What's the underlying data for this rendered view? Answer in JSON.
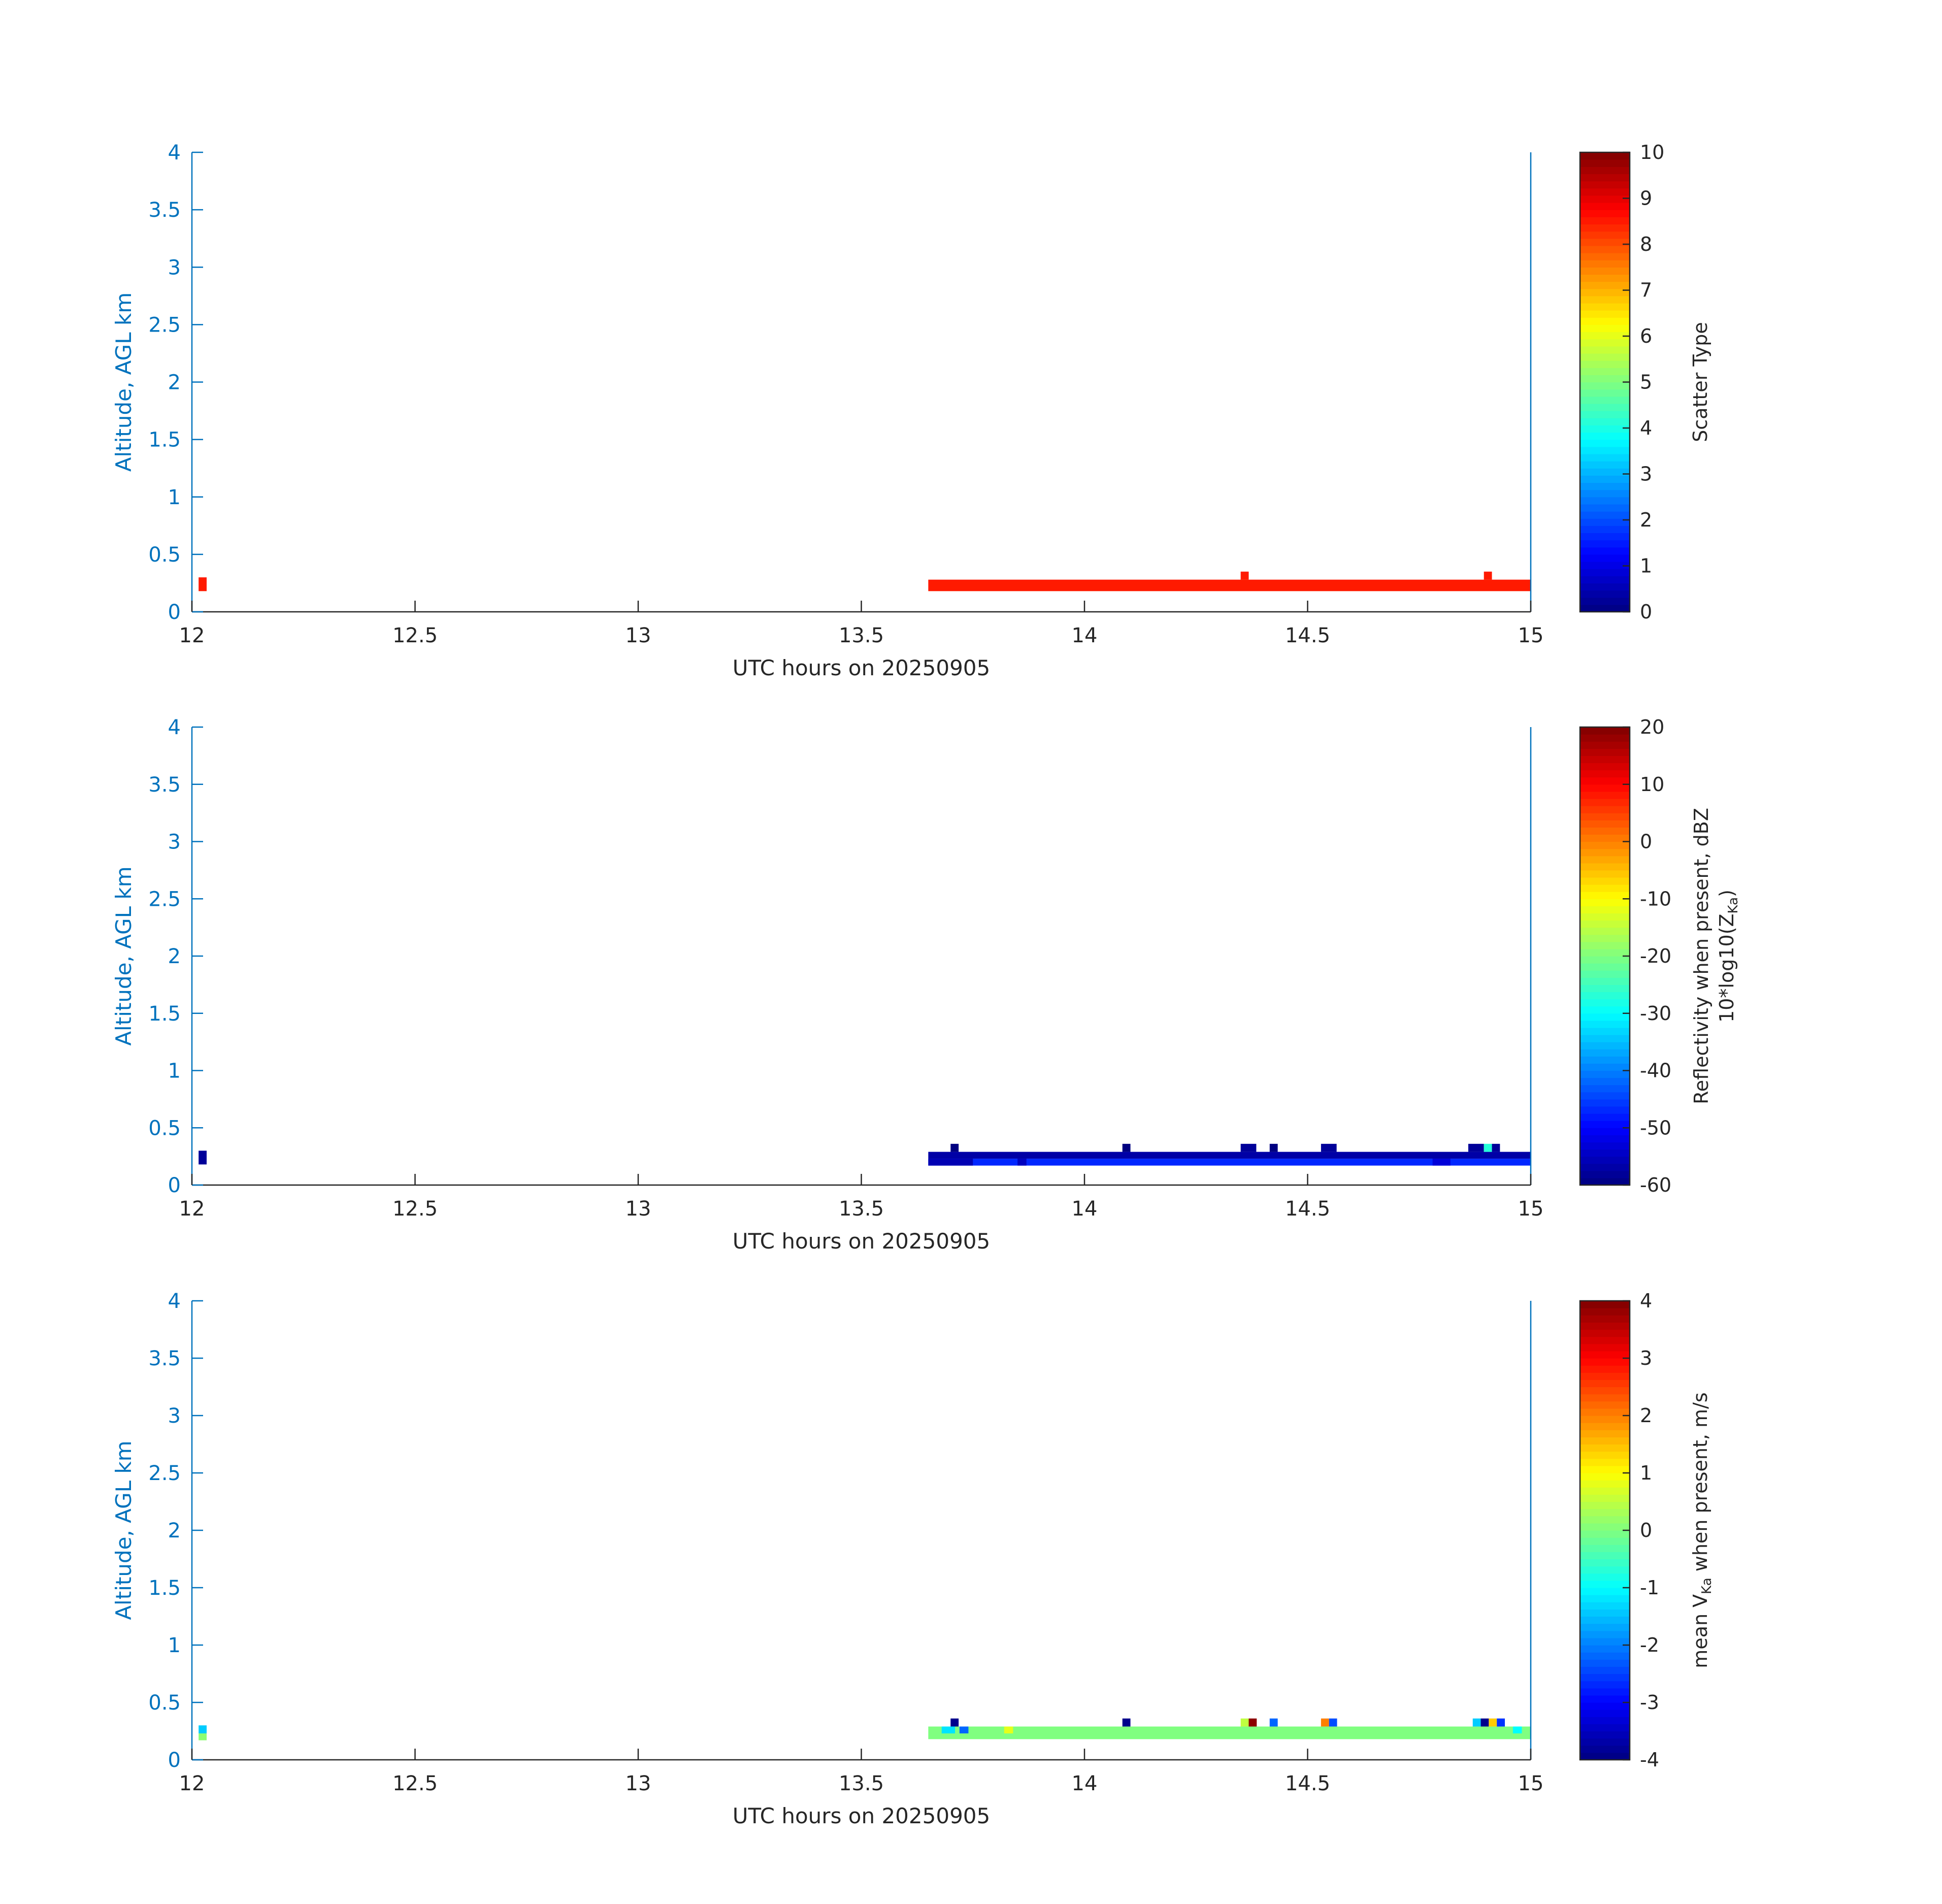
{
  "chart_data": [
    {
      "type": "heatmap",
      "xlabel": "UTC hours on 20250905",
      "ylabel": "Altitude, AGL km",
      "xlim": [
        12,
        15
      ],
      "ylim": [
        0,
        4
      ],
      "xticks": [
        "12",
        "12.5",
        "13",
        "13.5",
        "14",
        "14.5",
        "15"
      ],
      "yticks": [
        "0",
        "0.5",
        "1",
        "1.5",
        "2",
        "2.5",
        "3",
        "3.5",
        "4"
      ],
      "colorbar": {
        "label": "Scatter Type",
        "clim": [
          0,
          10
        ],
        "ticks": [
          "0",
          "1",
          "2",
          "3",
          "4",
          "5",
          "6",
          "7",
          "8",
          "9",
          "10"
        ],
        "colormap": "jet"
      },
      "cells": [
        {
          "x0": 12.015,
          "x1": 12.033,
          "y0": 0.18,
          "y1": 0.3,
          "v": 8.5
        },
        {
          "x0": 13.65,
          "x1": 15.0,
          "y0": 0.18,
          "y1": 0.28,
          "v": 8.5
        },
        {
          "x0": 14.35,
          "x1": 14.368,
          "y0": 0.28,
          "y1": 0.35,
          "v": 8.5
        },
        {
          "x0": 14.895,
          "x1": 14.913,
          "y0": 0.28,
          "y1": 0.35,
          "v": 8.5
        }
      ]
    },
    {
      "type": "heatmap",
      "xlabel": "UTC hours on 20250905",
      "ylabel": "Altitude, AGL km",
      "xlim": [
        12,
        15
      ],
      "ylim": [
        0,
        4
      ],
      "xticks": [
        "12",
        "12.5",
        "13",
        "13.5",
        "14",
        "14.5",
        "15"
      ],
      "yticks": [
        "0",
        "0.5",
        "1",
        "1.5",
        "2",
        "2.5",
        "3",
        "3.5",
        "4"
      ],
      "colorbar": {
        "label_line1": "Reflectivity when present, dBZ",
        "label_line2_pre": "10*log10(Z",
        "label_line2_sub": "Ka",
        "label_line2_post": ")",
        "clim": [
          -60,
          20
        ],
        "ticks": [
          "-60",
          "-50",
          "-40",
          "-30",
          "-20",
          "-10",
          "0",
          "10",
          "20"
        ],
        "colormap": "jet"
      },
      "cells": [
        {
          "x0": 12.015,
          "x1": 12.033,
          "y0": 0.18,
          "y1": 0.3,
          "v": -58
        },
        {
          "x0": 13.65,
          "x1": 15.0,
          "y0": 0.23,
          "y1": 0.29,
          "v": -57
        },
        {
          "x0": 13.65,
          "x1": 15.0,
          "y0": 0.17,
          "y1": 0.23,
          "v": -47
        },
        {
          "x0": 13.65,
          "x1": 13.75,
          "y0": 0.17,
          "y1": 0.23,
          "v": -56
        },
        {
          "x0": 13.85,
          "x1": 13.87,
          "y0": 0.17,
          "y1": 0.23,
          "v": -55
        },
        {
          "x0": 14.78,
          "x1": 14.82,
          "y0": 0.17,
          "y1": 0.23,
          "v": -53
        },
        {
          "x0": 13.7,
          "x1": 13.718,
          "y0": 0.29,
          "y1": 0.36,
          "v": -60
        },
        {
          "x0": 14.085,
          "x1": 14.103,
          "y0": 0.29,
          "y1": 0.36,
          "v": -60
        },
        {
          "x0": 14.35,
          "x1": 14.385,
          "y0": 0.29,
          "y1": 0.36,
          "v": -58
        },
        {
          "x0": 14.415,
          "x1": 14.433,
          "y0": 0.29,
          "y1": 0.36,
          "v": -60
        },
        {
          "x0": 14.53,
          "x1": 14.565,
          "y0": 0.29,
          "y1": 0.36,
          "v": -58
        },
        {
          "x0": 14.86,
          "x1": 14.895,
          "y0": 0.29,
          "y1": 0.36,
          "v": -58
        },
        {
          "x0": 14.895,
          "x1": 14.913,
          "y0": 0.29,
          "y1": 0.36,
          "v": -27
        },
        {
          "x0": 14.913,
          "x1": 14.931,
          "y0": 0.29,
          "y1": 0.36,
          "v": -58
        }
      ]
    },
    {
      "type": "heatmap",
      "xlabel": "UTC hours on 20250905",
      "ylabel": "Altitude, AGL km",
      "xlim": [
        12,
        15
      ],
      "ylim": [
        0,
        4
      ],
      "xticks": [
        "12",
        "12.5",
        "13",
        "13.5",
        "14",
        "14.5",
        "15"
      ],
      "yticks": [
        "0",
        "0.5",
        "1",
        "1.5",
        "2",
        "2.5",
        "3",
        "3.5",
        "4"
      ],
      "colorbar": {
        "label_pre": "mean V",
        "label_sub": "Ka",
        "label_post": " when present, m/s",
        "clim": [
          -4,
          4
        ],
        "ticks": [
          "-4",
          "-3",
          "-2",
          "-1",
          "0",
          "1",
          "2",
          "3",
          "4"
        ],
        "colormap": "jet"
      },
      "cells": [
        {
          "x0": 12.015,
          "x1": 12.033,
          "y0": 0.23,
          "y1": 0.3,
          "v": -1.4
        },
        {
          "x0": 12.015,
          "x1": 12.033,
          "y0": 0.17,
          "y1": 0.23,
          "v": 0.1
        },
        {
          "x0": 13.65,
          "x1": 15.0,
          "y0": 0.18,
          "y1": 0.29,
          "v": 0.0
        },
        {
          "x0": 13.7,
          "x1": 13.718,
          "y0": 0.29,
          "y1": 0.36,
          "v": -3.9
        },
        {
          "x0": 13.68,
          "x1": 13.71,
          "y0": 0.23,
          "y1": 0.29,
          "v": -1.2
        },
        {
          "x0": 13.72,
          "x1": 13.74,
          "y0": 0.23,
          "y1": 0.29,
          "v": -2.2
        },
        {
          "x0": 13.82,
          "x1": 13.84,
          "y0": 0.23,
          "y1": 0.29,
          "v": 0.8
        },
        {
          "x0": 14.085,
          "x1": 14.103,
          "y0": 0.29,
          "y1": 0.36,
          "v": -3.9
        },
        {
          "x0": 14.35,
          "x1": 14.368,
          "y0": 0.29,
          "y1": 0.36,
          "v": 0.5
        },
        {
          "x0": 14.368,
          "x1": 14.386,
          "y0": 0.29,
          "y1": 0.36,
          "v": 3.9
        },
        {
          "x0": 14.415,
          "x1": 14.433,
          "y0": 0.29,
          "y1": 0.36,
          "v": -2.2
        },
        {
          "x0": 14.53,
          "x1": 14.548,
          "y0": 0.29,
          "y1": 0.36,
          "v": 2.0
        },
        {
          "x0": 14.548,
          "x1": 14.566,
          "y0": 0.29,
          "y1": 0.36,
          "v": -2.4
        },
        {
          "x0": 14.87,
          "x1": 14.888,
          "y0": 0.29,
          "y1": 0.36,
          "v": -1.4
        },
        {
          "x0": 14.888,
          "x1": 14.906,
          "y0": 0.29,
          "y1": 0.36,
          "v": -3.9
        },
        {
          "x0": 14.906,
          "x1": 14.924,
          "y0": 0.29,
          "y1": 0.36,
          "v": 1.4
        },
        {
          "x0": 14.924,
          "x1": 14.942,
          "y0": 0.29,
          "y1": 0.36,
          "v": -2.6
        },
        {
          "x0": 14.96,
          "x1": 14.98,
          "y0": 0.23,
          "y1": 0.29,
          "v": -1.0
        }
      ]
    }
  ]
}
